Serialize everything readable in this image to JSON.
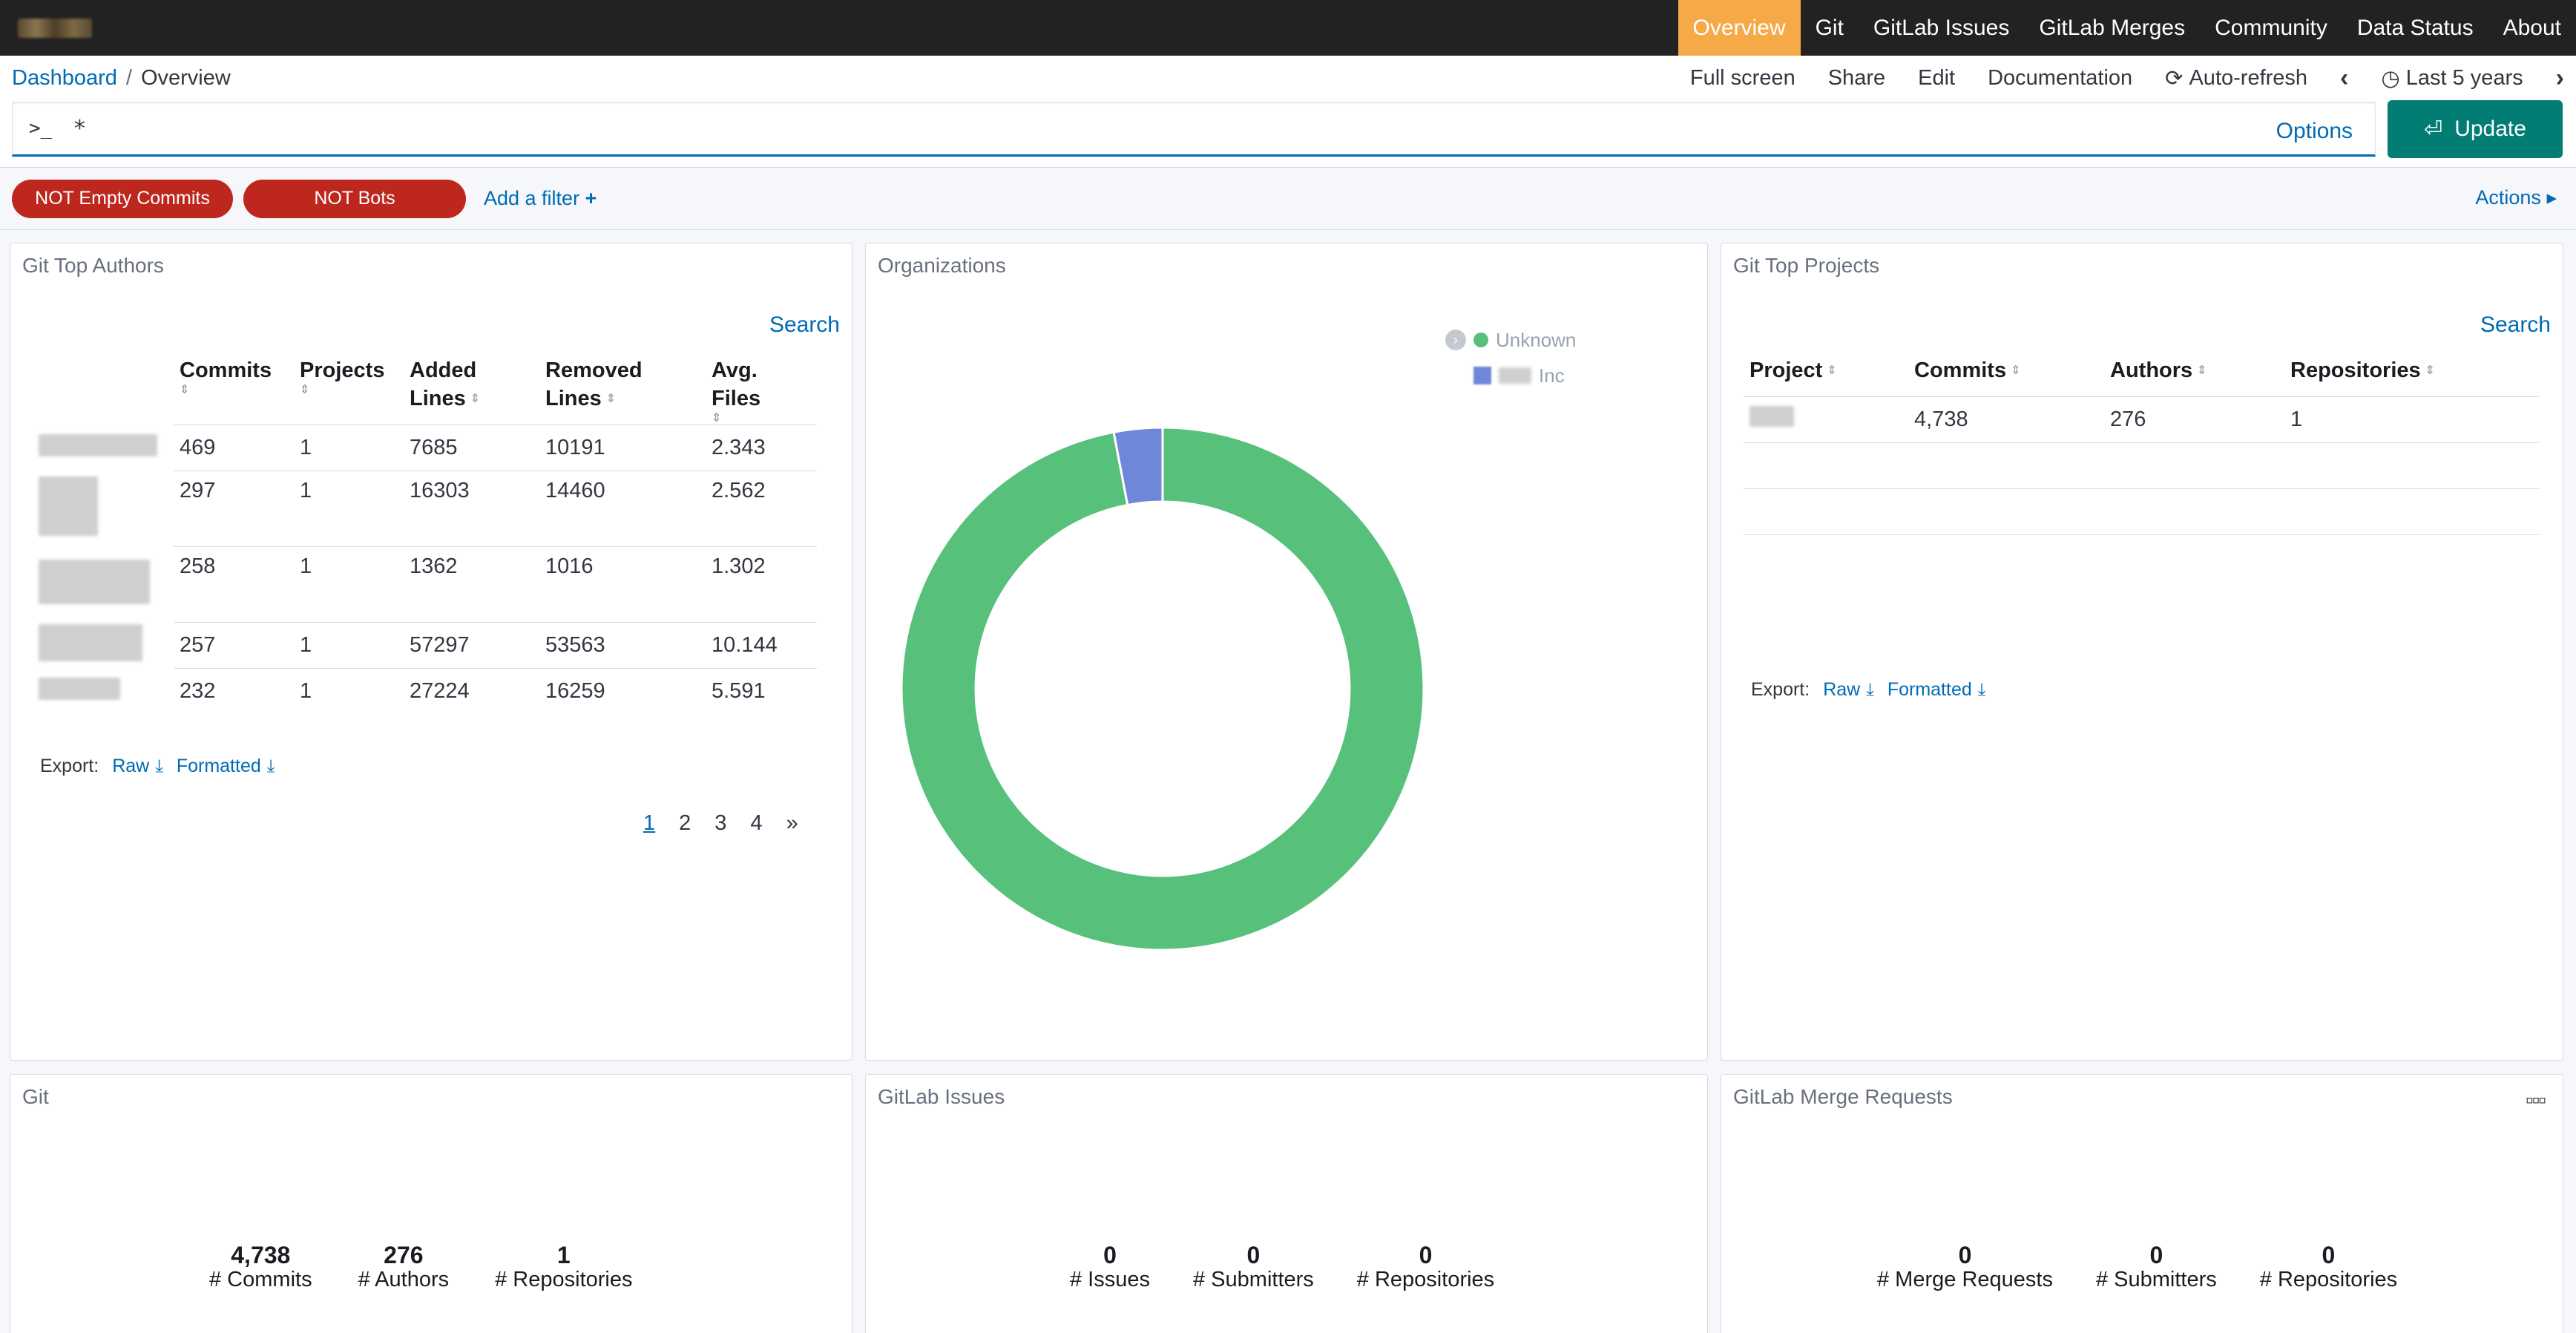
{
  "nav": {
    "tabs": [
      "Overview",
      "Git",
      "GitLab Issues",
      "GitLab Merges",
      "Community",
      "Data Status",
      "About"
    ],
    "active": "Overview"
  },
  "breadcrumb": {
    "root": "Dashboard",
    "current": "Overview"
  },
  "menu": {
    "full_screen": "Full screen",
    "share": "Share",
    "edit": "Edit",
    "documentation": "Documentation",
    "auto_refresh": "Auto-refresh",
    "time_range": "Last 5 years"
  },
  "query": {
    "prompt": ">_",
    "value": "*",
    "options": "Options",
    "update": "Update"
  },
  "filters": {
    "pills": [
      "NOT Empty Commits",
      "NOT Bots"
    ],
    "add": "Add a filter",
    "actions": "Actions"
  },
  "authors_panel": {
    "title": "Git Top Authors",
    "search": "Search",
    "headers": [
      "Commits",
      "Projects",
      "Added Lines",
      "Removed Lines",
      "Avg. Files"
    ],
    "header_lines": [
      [
        "Commits"
      ],
      [
        "Projects"
      ],
      [
        "Added",
        "Lines"
      ],
      [
        "Removed",
        "Lines"
      ],
      [
        "Avg. Files"
      ]
    ],
    "rows": [
      [
        "469",
        "1",
        "7685",
        "10191",
        "2.343"
      ],
      [
        "297",
        "1",
        "16303",
        "14460",
        "2.562"
      ],
      [
        "258",
        "1",
        "1362",
        "1016",
        "1.302"
      ],
      [
        "257",
        "1",
        "57297",
        "53563",
        "10.144"
      ],
      [
        "232",
        "1",
        "27224",
        "16259",
        "5.591"
      ]
    ],
    "export_label": "Export:",
    "raw": "Raw",
    "formatted": "Formatted",
    "pages": [
      "1",
      "2",
      "3",
      "4",
      "»"
    ]
  },
  "organizations_panel": {
    "title": "Organizations",
    "legend": [
      "Unknown",
      "Inc"
    ],
    "colors": {
      "Unknown": "#57c17b",
      "Inc": "#6f87d8"
    }
  },
  "chart_data": {
    "type": "pie",
    "categories": [
      "Unknown",
      "Inc"
    ],
    "values": [
      97,
      3
    ],
    "legend_position": "top-right"
  },
  "projects_panel": {
    "title": "Git Top Projects",
    "search": "Search",
    "headers": [
      "Project",
      "Commits",
      "Authors",
      "Repositories"
    ],
    "rows": [
      [
        "",
        "4,738",
        "276",
        "1"
      ]
    ],
    "export_label": "Export:",
    "raw": "Raw",
    "formatted": "Formatted"
  },
  "git_panel": {
    "title": "Git",
    "metrics": [
      {
        "value": "4,738",
        "label": "# Commits"
      },
      {
        "value": "276",
        "label": "# Authors"
      },
      {
        "value": "1",
        "label": "# Repositories"
      }
    ]
  },
  "issues_panel": {
    "title": "GitLab Issues",
    "metrics": [
      {
        "value": "0",
        "label": "# Issues"
      },
      {
        "value": "0",
        "label": "# Submitters"
      },
      {
        "value": "0",
        "label": "# Repositories"
      }
    ]
  },
  "merges_panel": {
    "title": "GitLab Merge Requests",
    "metrics": [
      {
        "value": "0",
        "label": "# Merge Requests"
      },
      {
        "value": "0",
        "label": "# Submitters"
      },
      {
        "value": "0",
        "label": "# Repositories"
      }
    ]
  }
}
